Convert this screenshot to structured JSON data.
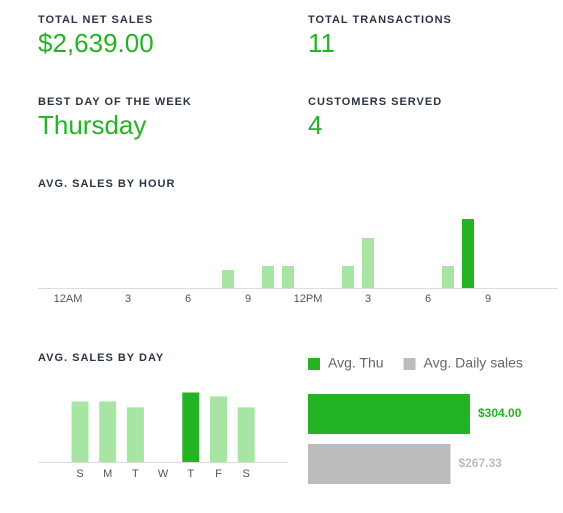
{
  "stats": [
    {
      "label": "TOTAL NET SALES",
      "value": "$2,639.00"
    },
    {
      "label": "TOTAL TRANSACTIONS",
      "value": "11"
    },
    {
      "label": "BEST DAY OF THE WEEK",
      "value": "Thursday"
    },
    {
      "label": "CUSTOMERS SERVED",
      "value": "4"
    }
  ],
  "chart_data": [
    {
      "type": "bar",
      "title": "AVG. SALES BY HOUR",
      "categories": [
        "12AM",
        null,
        null,
        "3",
        null,
        null,
        "6",
        null,
        null,
        "9",
        null,
        null,
        "12PM",
        null,
        null,
        "3",
        null,
        null,
        "6",
        null,
        null,
        "9",
        null,
        null
      ],
      "values": [
        0,
        0,
        0,
        0,
        0,
        0,
        0,
        0,
        18,
        0,
        22,
        22,
        0,
        0,
        22,
        50,
        0,
        0,
        0,
        22,
        69,
        0,
        0,
        0
      ],
      "colors": [
        "#a8e4a4",
        "#a8e4a4",
        "#a8e4a4",
        "#a8e4a4",
        "#a8e4a4",
        "#a8e4a4",
        "#a8e4a4",
        "#a8e4a4",
        "#a8e4a4",
        "#a8e4a4",
        "#a8e4a4",
        "#a8e4a4",
        "#a8e4a4",
        "#a8e4a4",
        "#a8e4a4",
        "#a8e4a4",
        "#a8e4a4",
        "#a8e4a4",
        "#a8e4a4",
        "#a8e4a4",
        "#24b324",
        "#a8e4a4",
        "#a8e4a4",
        "#a8e4a4"
      ],
      "ylim": [
        0,
        80
      ]
    },
    {
      "type": "bar",
      "title": "AVG. SALES BY DAY",
      "categories": [
        "S",
        "M",
        "T",
        "W",
        "T",
        "F",
        "S"
      ],
      "values": [
        265,
        265,
        239,
        0,
        304,
        287,
        239
      ],
      "colors": [
        "#a8e4a4",
        "#a8e4a4",
        "#a8e4a4",
        "#a8e4a4",
        "#24b324",
        "#a8e4a4",
        "#a8e4a4"
      ],
      "ylim": [
        0,
        350
      ]
    },
    {
      "type": "hbar",
      "series": [
        {
          "name": "Avg. Thu",
          "color": "#24b324",
          "values": [
            304
          ],
          "value_labels": [
            "$304.00"
          ]
        },
        {
          "name": "Avg. Daily sales",
          "color": "#bbbcbe",
          "values": [
            267.33
          ],
          "value_labels": [
            "$267.33"
          ]
        }
      ],
      "xlim": [
        0,
        350
      ]
    }
  ]
}
